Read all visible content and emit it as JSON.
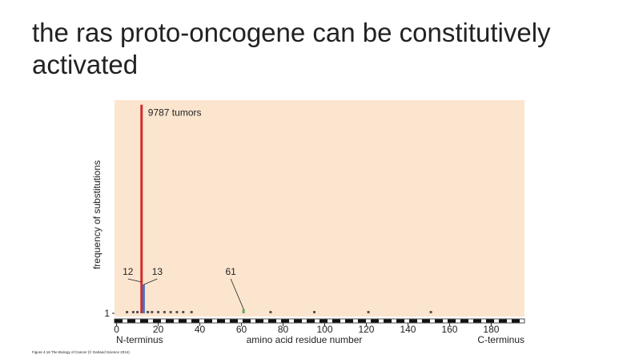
{
  "chart_data": {
    "type": "bar",
    "title": "the ras proto-oncogene can be constitutively activated",
    "x": [
      5,
      8,
      10,
      12,
      13,
      15,
      17,
      20,
      23,
      26,
      29,
      32,
      36,
      61,
      74,
      95,
      121,
      151
    ],
    "values": [
      1,
      1,
      1,
      9787,
      1350,
      1,
      1,
      1,
      1,
      1,
      1,
      1,
      1,
      200,
      1,
      1,
      1,
      1
    ],
    "value_labels": [
      null,
      null,
      null,
      "9787 tumors",
      null,
      null,
      null,
      null,
      null,
      null,
      null,
      null,
      null,
      null,
      null,
      null,
      null,
      null
    ],
    "colors": [
      "#555555",
      "#555555",
      "#555555",
      "#d42a2a",
      "#4a6fc8",
      "#555555",
      "#555555",
      "#555555",
      "#555555",
      "#555555",
      "#555555",
      "#555555",
      "#555555",
      "#6aa84f",
      "#555555",
      "#555555",
      "#555555",
      "#555555"
    ],
    "annotations": [
      {
        "text": "12",
        "x": 12
      },
      {
        "text": "13",
        "x": 13
      },
      {
        "text": "61",
        "x": 61
      }
    ],
    "xlim": [
      -1,
      196
    ],
    "xticks": [
      0,
      20,
      40,
      60,
      80,
      100,
      120,
      140,
      160,
      180
    ],
    "ylim": [
      0,
      10000
    ],
    "yticks": [
      1
    ],
    "xlabel": "amino acid residue number",
    "ylabel": "frequency of substitutions",
    "x_end_labels": [
      "N-terminus",
      "C-terminus"
    ],
    "caption": "Figure 4.16 The Biology of Cancer (© Garland Science 2014)",
    "background": "#fbe5cf"
  }
}
